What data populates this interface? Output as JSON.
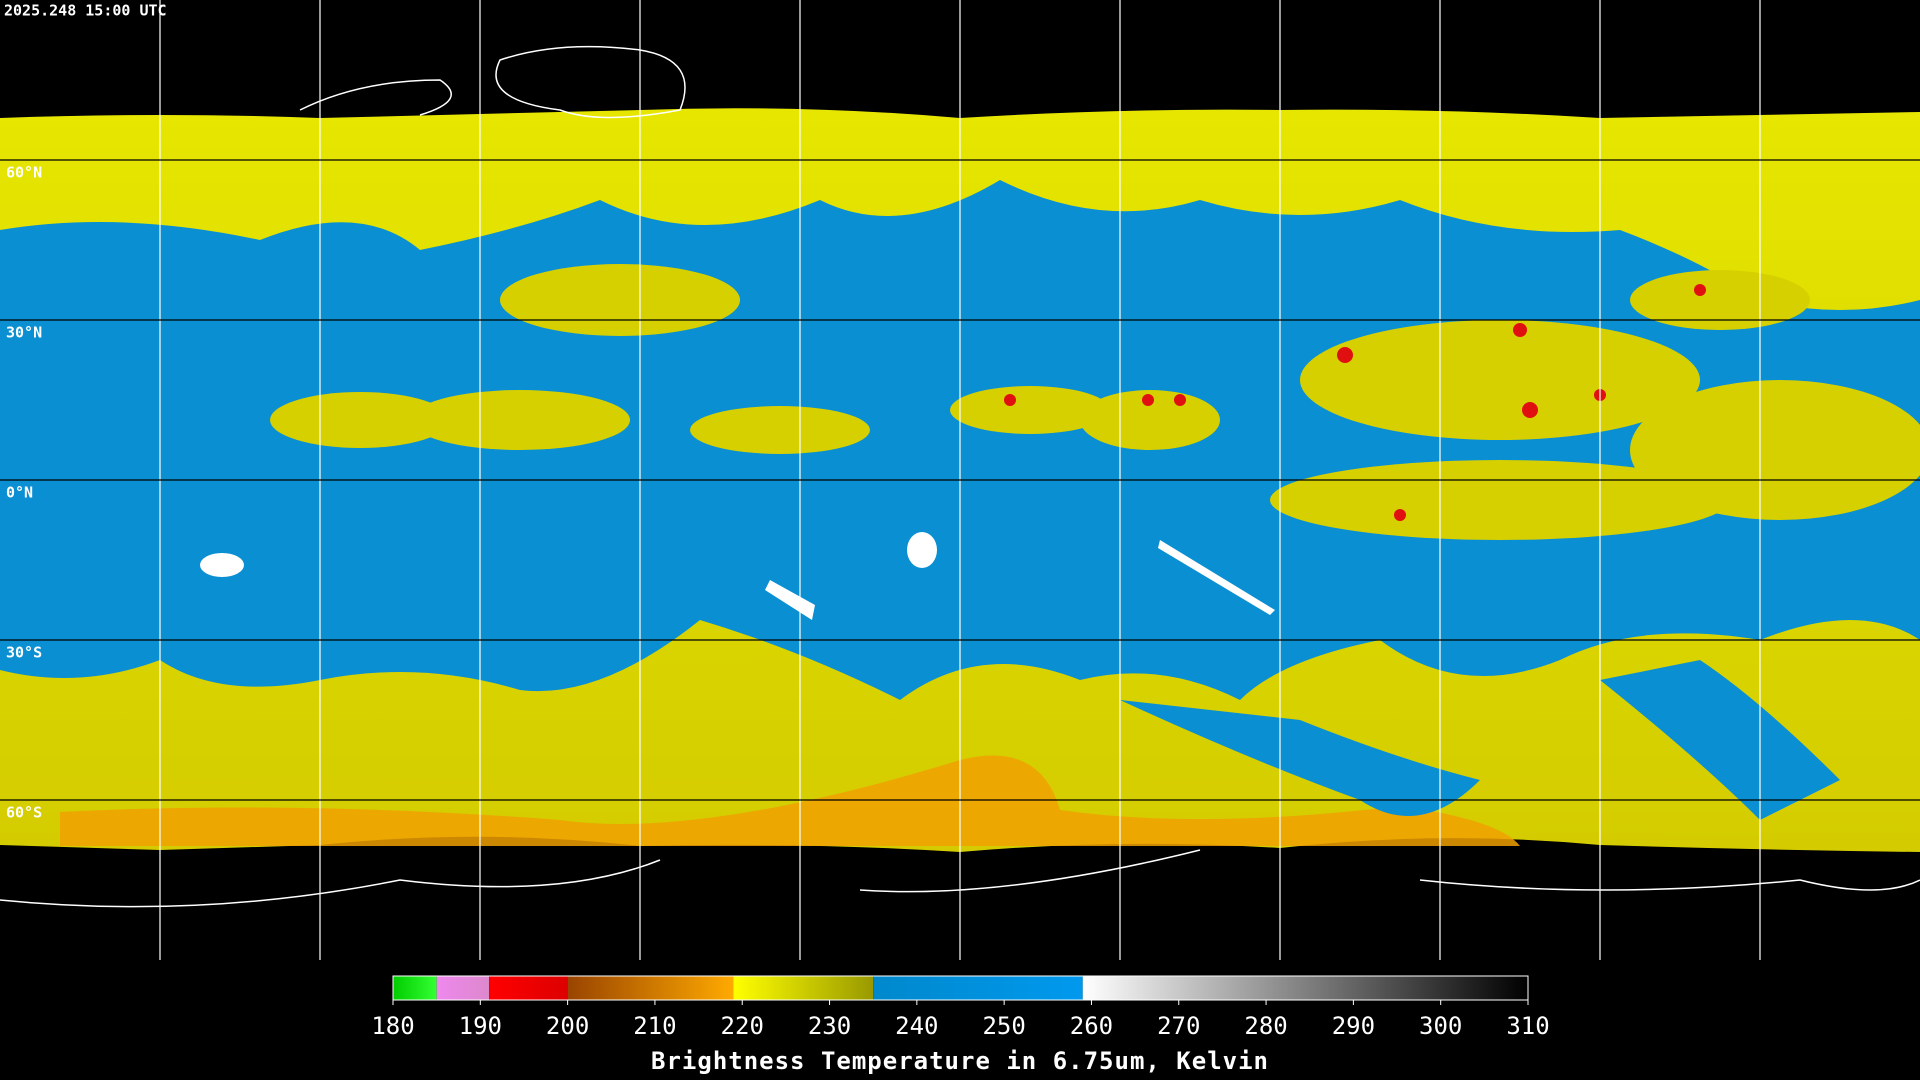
{
  "map": {
    "timestamp": "2025.248 15:00 UTC",
    "latitudes": [
      {
        "value": 60,
        "label": "60°N"
      },
      {
        "value": 30,
        "label": "30°N"
      },
      {
        "value": 0,
        "label": "0°N"
      },
      {
        "value": -30,
        "label": "30°S"
      },
      {
        "value": -60,
        "label": "60°S"
      }
    ],
    "colorbar": {
      "title": "Brightness Temperature in 6.75um, Kelvin",
      "range": [
        180,
        310
      ],
      "ticks": [
        180,
        190,
        200,
        210,
        220,
        230,
        240,
        250,
        260,
        270,
        280,
        290,
        300,
        310
      ],
      "segments": [
        {
          "from": 180,
          "to": 185,
          "colors": [
            "#00cc00",
            "#33ff33"
          ]
        },
        {
          "from": 185,
          "to": 191,
          "colors": [
            "#ee88ee",
            "#dd88cc"
          ]
        },
        {
          "from": 191,
          "to": 200,
          "colors": [
            "#ff0000",
            "#dd0000"
          ]
        },
        {
          "from": 200,
          "to": 219,
          "colors": [
            "#994400",
            "#ffaa00"
          ]
        },
        {
          "from": 219,
          "to": 235,
          "colors": [
            "#ffff00",
            "#999900"
          ]
        },
        {
          "from": 235,
          "to": 259,
          "colors": [
            "#0088cc",
            "#0099ee"
          ]
        },
        {
          "from": 259,
          "to": 310,
          "colors": [
            "#ffffff",
            "#000000"
          ]
        }
      ]
    }
  }
}
